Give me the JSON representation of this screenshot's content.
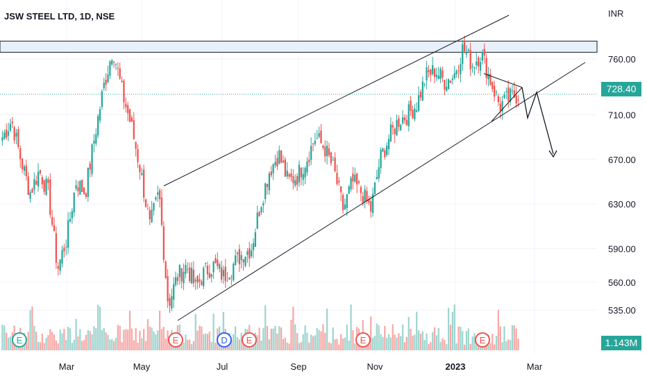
{
  "header": {
    "title": "JSW STEEL LTD, 1D, NSE",
    "currency": "INR"
  },
  "last_price_label": "728.40",
  "volume_label": "1.143M",
  "colors": {
    "up": "#26a69a",
    "down": "#ef5350",
    "volume_up": "#9fd5cf",
    "volume_down": "#f7a9a7",
    "grid": "#f0f3fa",
    "resistance_zone": "#e8f0fb",
    "event_earnings": "#ef5350",
    "event_dividend": "#2962ff",
    "event_split": "#26a69a"
  },
  "chart_data": {
    "type": "candlestick",
    "title": "JSW STEEL LTD, 1D, NSE",
    "currency": "INR",
    "y_ticks": [
      "760.00",
      "710.00",
      "670.00",
      "630.00",
      "590.00",
      "560.00",
      "535.00"
    ],
    "x_ticks": [
      "Mar",
      "May",
      "Jul",
      "Sep",
      "Nov",
      "2023",
      "Mar"
    ],
    "last_price": 728.4,
    "volume_last": "1.143M",
    "grid": true,
    "resistance_zone": [
      766,
      776
    ],
    "closes": [
      {
        "d": "2022-02-01",
        "c": 690
      },
      {
        "d": "2022-02-08",
        "c": 705
      },
      {
        "d": "2022-02-14",
        "c": 670
      },
      {
        "d": "2022-02-21",
        "c": 640
      },
      {
        "d": "2022-02-28",
        "c": 660
      },
      {
        "d": "2022-03-07",
        "c": 640
      },
      {
        "d": "2022-03-09",
        "c": 572
      },
      {
        "d": "2022-03-14",
        "c": 600
      },
      {
        "d": "2022-03-21",
        "c": 650
      },
      {
        "d": "2022-03-28",
        "c": 640
      },
      {
        "d": "2022-04-04",
        "c": 690
      },
      {
        "d": "2022-04-11",
        "c": 735
      },
      {
        "d": "2022-04-18",
        "c": 770
      },
      {
        "d": "2022-04-25",
        "c": 730
      },
      {
        "d": "2022-05-02",
        "c": 700
      },
      {
        "d": "2022-05-09",
        "c": 660
      },
      {
        "d": "2022-05-16",
        "c": 610
      },
      {
        "d": "2022-05-20",
        "c": 640
      },
      {
        "d": "2022-05-25",
        "c": 540
      },
      {
        "d": "2022-06-01",
        "c": 565
      },
      {
        "d": "2022-06-08",
        "c": 575
      },
      {
        "d": "2022-06-15",
        "c": 555
      },
      {
        "d": "2022-06-22",
        "c": 570
      },
      {
        "d": "2022-06-29",
        "c": 575
      },
      {
        "d": "2022-07-06",
        "c": 565
      },
      {
        "d": "2022-07-13",
        "c": 575
      },
      {
        "d": "2022-07-20",
        "c": 585
      },
      {
        "d": "2022-07-27",
        "c": 590
      },
      {
        "d": "2022-08-03",
        "c": 630
      },
      {
        "d": "2022-08-10",
        "c": 660
      },
      {
        "d": "2022-08-17",
        "c": 675
      },
      {
        "d": "2022-08-24",
        "c": 650
      },
      {
        "d": "2022-08-31",
        "c": 655
      },
      {
        "d": "2022-09-07",
        "c": 670
      },
      {
        "d": "2022-09-14",
        "c": 690
      },
      {
        "d": "2022-09-21",
        "c": 680
      },
      {
        "d": "2022-09-28",
        "c": 660
      },
      {
        "d": "2022-10-05",
        "c": 625
      },
      {
        "d": "2022-10-12",
        "c": 650
      },
      {
        "d": "2022-10-19",
        "c": 640
      },
      {
        "d": "2022-10-26",
        "c": 625
      },
      {
        "d": "2022-11-02",
        "c": 670
      },
      {
        "d": "2022-11-09",
        "c": 690
      },
      {
        "d": "2022-11-16",
        "c": 705
      },
      {
        "d": "2022-11-23",
        "c": 710
      },
      {
        "d": "2022-11-30",
        "c": 720
      },
      {
        "d": "2022-12-07",
        "c": 745
      },
      {
        "d": "2022-12-14",
        "c": 750
      },
      {
        "d": "2022-12-21",
        "c": 740
      },
      {
        "d": "2022-12-28",
        "c": 745
      },
      {
        "d": "2023-01-04",
        "c": 770
      },
      {
        "d": "2023-01-11",
        "c": 755
      },
      {
        "d": "2023-01-18",
        "c": 765
      },
      {
        "d": "2023-01-25",
        "c": 740
      },
      {
        "d": "2023-02-01",
        "c": 718
      },
      {
        "d": "2023-02-08",
        "c": 725
      },
      {
        "d": "2023-02-15",
        "c": 728.4
      }
    ],
    "volume_events": [
      {
        "label": "E",
        "kind": "earnings"
      },
      {
        "label": "E",
        "kind": "earnings"
      },
      {
        "label": "D",
        "kind": "dividend"
      },
      {
        "label": "E",
        "kind": "earnings"
      },
      {
        "label": "E",
        "kind": "earnings"
      },
      {
        "label": "E",
        "kind": "earnings"
      }
    ],
    "first_event_label": "E"
  }
}
